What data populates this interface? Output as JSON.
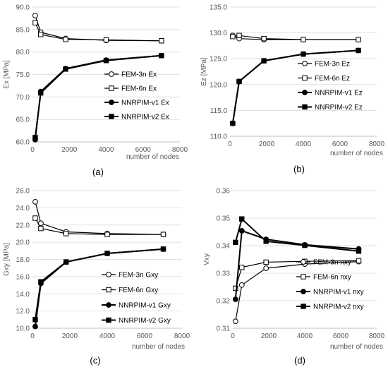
{
  "chart_data": [
    {
      "type": "line",
      "panel_label": "(a)",
      "ylabel": "Ex [MPa]",
      "xlabel": "number of nodes",
      "xlim": [
        0,
        8000
      ],
      "ylim": [
        60,
        90
      ],
      "x_ticks": [
        0,
        2000,
        4000,
        6000,
        8000
      ],
      "y_ticks": [
        60.0,
        65.0,
        70.0,
        75.0,
        80.0,
        85.0,
        90.0
      ],
      "y_decimals": 1,
      "grid": true,
      "legend_position": "right",
      "series": [
        {
          "name": "FEM-3n Ex",
          "marker": "circle-open",
          "x": [
            150,
            450,
            1800,
            4000,
            7000
          ],
          "y": [
            88.1,
            84.4,
            83.0,
            82.6,
            82.5
          ]
        },
        {
          "name": "FEM-6n Ex",
          "marker": "square-open",
          "x": [
            150,
            450,
            1800,
            4000,
            7000
          ],
          "y": [
            86.5,
            83.9,
            82.8,
            82.7,
            82.5
          ]
        },
        {
          "name": "NNRPIM-v1 Ex",
          "marker": "circle-filled",
          "x": [
            150,
            450,
            1800,
            4000,
            7000
          ],
          "y": [
            60.5,
            71.2,
            76.3,
            78.2,
            79.2
          ]
        },
        {
          "name": "NNRPIM-v2 Ex",
          "marker": "square-filled",
          "x": [
            150,
            450,
            1800,
            4000,
            7000
          ],
          "y": [
            61.0,
            70.9,
            76.2,
            78.1,
            79.2
          ]
        }
      ]
    },
    {
      "type": "line",
      "panel_label": "(b)",
      "ylabel": "Ez [MPa]",
      "xlabel": "number of nodes",
      "xlim": [
        0,
        8000
      ],
      "ylim": [
        110,
        135
      ],
      "x_ticks": [
        0,
        2000,
        4000,
        6000,
        8000
      ],
      "y_ticks": [
        110.0,
        115.0,
        120.0,
        125.0,
        130.0,
        135.0
      ],
      "y_decimals": 1,
      "grid": true,
      "legend_position": "right",
      "series": [
        {
          "name": "FEM-3n Ez",
          "marker": "circle-open",
          "x": [
            150,
            500,
            1850,
            4000,
            7000
          ],
          "y": [
            129.5,
            128.9,
            128.7,
            128.7,
            128.7
          ]
        },
        {
          "name": "FEM-6n Ez",
          "marker": "square-open",
          "x": [
            150,
            500,
            1850,
            4000,
            7000
          ],
          "y": [
            129.3,
            129.5,
            128.9,
            128.7,
            128.7
          ]
        },
        {
          "name": "NNRPIM-v1 Ez",
          "marker": "circle-filled",
          "x": [
            150,
            500,
            1850,
            4000,
            7000
          ],
          "y": [
            112.5,
            120.6,
            124.6,
            125.9,
            126.6
          ]
        },
        {
          "name": "NNRPIM-v2 Ez",
          "marker": "square-filled",
          "x": [
            150,
            500,
            1850,
            4000,
            7000
          ],
          "y": [
            112.5,
            120.6,
            124.6,
            125.9,
            126.6
          ]
        }
      ]
    },
    {
      "type": "line",
      "panel_label": "(c)",
      "ylabel": "Gxy [MPa]",
      "xlabel": "number of nodes",
      "xlim": [
        0,
        8000
      ],
      "ylim": [
        10,
        26
      ],
      "x_ticks": [
        0,
        2000,
        4000,
        6000,
        8000
      ],
      "y_ticks": [
        10.0,
        12.0,
        14.0,
        16.0,
        18.0,
        20.0,
        22.0,
        24.0,
        26.0
      ],
      "y_decimals": 1,
      "grid": true,
      "legend_position": "right",
      "series": [
        {
          "name": "FEM-3n Gxy",
          "marker": "circle-open",
          "x": [
            150,
            450,
            1800,
            4000,
            7000
          ],
          "y": [
            24.7,
            22.2,
            21.2,
            21.0,
            20.9
          ]
        },
        {
          "name": "FEM-6n Gxy",
          "marker": "square-open",
          "x": [
            150,
            450,
            1800,
            4000,
            7000
          ],
          "y": [
            22.8,
            21.6,
            21.0,
            20.9,
            20.9
          ]
        },
        {
          "name": "NNRPIM-v1 Gxy",
          "marker": "circle-filled",
          "x": [
            150,
            450,
            1800,
            4000,
            7000
          ],
          "y": [
            10.2,
            15.2,
            17.7,
            18.7,
            19.2
          ]
        },
        {
          "name": "NNRPIM-v2 Gxy",
          "marker": "square-filled",
          "x": [
            150,
            450,
            1800,
            4000,
            7000
          ],
          "y": [
            11.0,
            15.4,
            17.7,
            18.7,
            19.2
          ]
        }
      ]
    },
    {
      "type": "line",
      "panel_label": "(d)",
      "ylabel": "Vxy",
      "xlabel": "number of nodes",
      "xlim": [
        0,
        8000
      ],
      "ylim": [
        0.31,
        0.36
      ],
      "x_ticks": [
        0,
        2000,
        4000,
        6000,
        8000
      ],
      "y_ticks": [
        0.31,
        0.32,
        0.33,
        0.34,
        0.35,
        0.36
      ],
      "y_decimals": 2,
      "grid": true,
      "legend_position": "bottom-right",
      "series": [
        {
          "name": "FEM-3n nxy",
          "marker": "circle-open",
          "x": [
            150,
            500,
            1850,
            4000,
            7000
          ],
          "y": [
            0.3125,
            0.3257,
            0.3318,
            0.3333,
            0.3342
          ]
        },
        {
          "name": "FEM-6n nxy",
          "marker": "square-open",
          "x": [
            150,
            500,
            1850,
            4000,
            7000
          ],
          "y": [
            0.3245,
            0.3321,
            0.334,
            0.3343,
            0.3345
          ]
        },
        {
          "name": "NNRPIM-v1 nxy",
          "marker": "circle-filled",
          "x": [
            150,
            500,
            1850,
            4000,
            7000
          ],
          "y": [
            0.3205,
            0.3454,
            0.3423,
            0.3403,
            0.3388
          ]
        },
        {
          "name": "NNRPIM-v2 nxy",
          "marker": "square-filled",
          "x": [
            150,
            500,
            1850,
            4000,
            7000
          ],
          "y": [
            0.3412,
            0.3497,
            0.3416,
            0.3401,
            0.338
          ]
        }
      ]
    }
  ],
  "colors": {
    "grid": "#d9d9d9",
    "axis": "#bfbfbf",
    "series": "#000000",
    "tick_text": "#595959",
    "label_text": "#000000"
  }
}
